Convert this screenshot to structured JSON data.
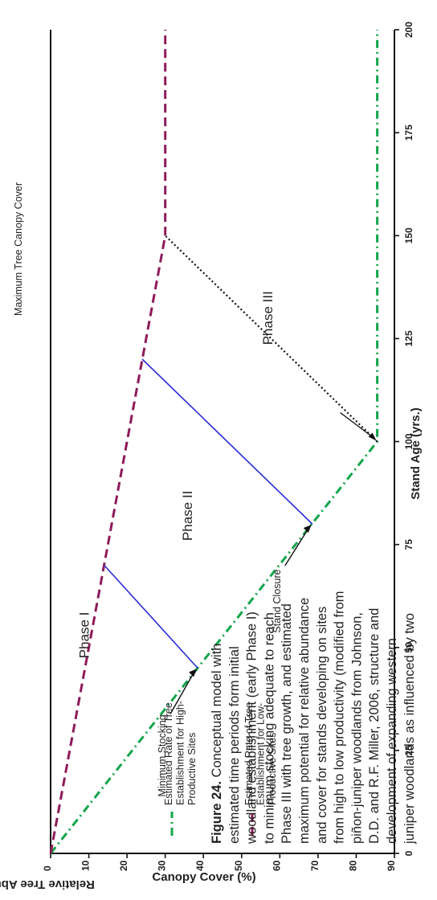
{
  "chart_data": {
    "type": "line",
    "xlabel": "Stand Age (yrs.)",
    "ylabel_left": "Relative Tree Abundance",
    "ylabel_right": "Canopy Cover (%)",
    "xlim": [
      0,
      200
    ],
    "ylim": [
      0,
      90
    ],
    "x_ticks": [
      0,
      25,
      50,
      75,
      100,
      125,
      150,
      175,
      200
    ],
    "y_ticks": [
      0,
      10,
      20,
      30,
      40,
      50,
      60,
      70,
      80,
      90
    ],
    "orientation": "rotated 90 degrees counter-clockwise",
    "series": [
      {
        "name": "Estimated Rate of Tree Establishment for High-Productive Sites",
        "legend_lines": [
          "Estimated Rate of Tree",
          "Establishment for High-",
          "Productive Sites"
        ],
        "style": "dash-dot",
        "color": "#12a54a",
        "x": [
          0,
          100,
          200
        ],
        "y": [
          0,
          85.5,
          85.5
        ]
      },
      {
        "name": "Estimated Rate of Tree Establishment for Low-Productive Sites",
        "legend_lines": [
          "Estimated Rate of Tree",
          "Establishment for Low-",
          "Productive Sites"
        ],
        "style": "dashed",
        "color": "#8e1b5a",
        "x": [
          0,
          150,
          200
        ],
        "y": [
          0,
          30,
          30
        ]
      }
    ],
    "phase_boundaries": [
      {
        "style": "solid",
        "color": "#2b2bd6",
        "from": [
          45,
          38.5
        ],
        "to": [
          70,
          14
        ]
      },
      {
        "style": "solid",
        "color": "#2b2bd6",
        "from": [
          80,
          68.5
        ],
        "to": [
          120,
          24
        ]
      },
      {
        "style": "dotted",
        "color": "#111111",
        "from": [
          100,
          85.5
        ],
        "to": [
          150,
          30
        ]
      }
    ],
    "phase_labels": [
      {
        "text": "Phase I",
        "x": 53,
        "y": 10
      },
      {
        "text": "Phase II",
        "x": 82,
        "y": 37
      },
      {
        "text": "Phase III",
        "x": 130,
        "y": 58
      }
    ],
    "annotations": [
      {
        "text": "Minimum Stocking",
        "x": 45,
        "y": 38.5
      },
      {
        "text": "Stand Closure",
        "x": 80,
        "y": 68.5
      },
      {
        "text": "Maximum Tree Canopy Cover",
        "x": 100,
        "y": 85.5
      }
    ]
  },
  "caption": {
    "label": "Figure 24.",
    "lines": [
      "Conceptual model with",
      "estimated time periods form initial",
      "woodland establishment (early Phase I)",
      "to minimum stocking adequate to reach",
      "Phase III with tree growth, and estimated",
      "maximum potential for relative abundance",
      "and cover for stands developing on sites",
      "from high to low productivity (modified from",
      "piñon-juniper woodlands from Johnson,",
      "D.D. and R.F. Miller, 2006, structure and",
      "development of expanding western",
      "juniper woodlands as influenced by two"
    ]
  }
}
